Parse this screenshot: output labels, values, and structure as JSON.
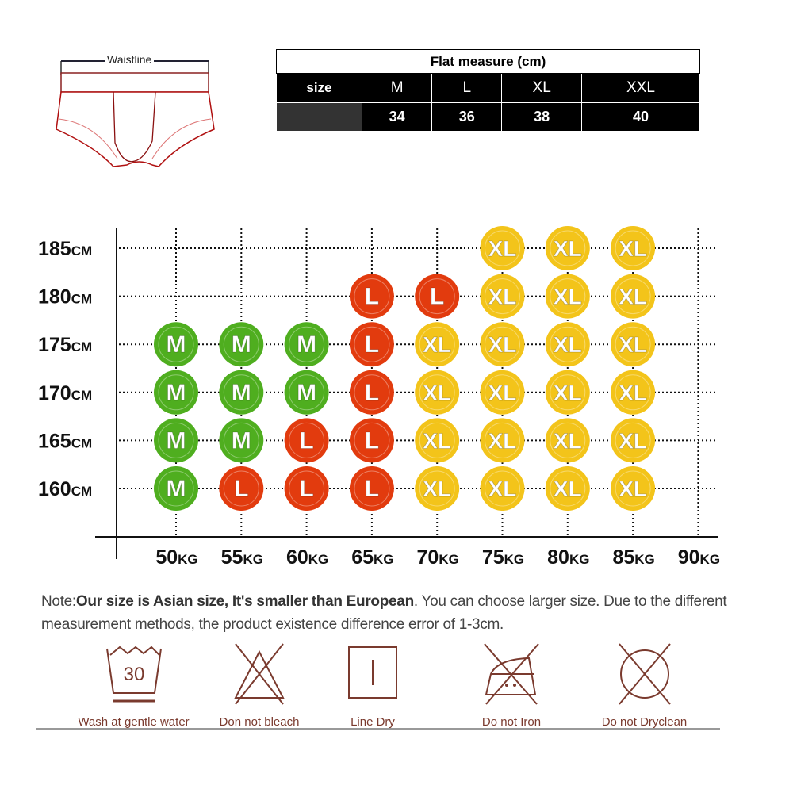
{
  "diagram": {
    "waistline_label": "Waistline"
  },
  "flat_measure": {
    "title": "Flat measure (cm)",
    "header_label": "size",
    "sizes": [
      "M",
      "L",
      "XL",
      "XXL"
    ],
    "values": [
      "34",
      "36",
      "38",
      "40"
    ]
  },
  "chart_data": {
    "type": "table",
    "title": "",
    "xlabel": "",
    "ylabel": "",
    "x_tick_labels": [
      "50KG",
      "55KG",
      "60KG",
      "65KG",
      "70KG",
      "75KG",
      "80KG",
      "85KG",
      "90KG"
    ],
    "y_tick_labels": [
      "185CM",
      "180CM",
      "175CM",
      "170CM",
      "165CM",
      "160CM"
    ],
    "x_values_kg": [
      50,
      55,
      60,
      65,
      70,
      75,
      80,
      85,
      90
    ],
    "y_values_cm": [
      185,
      180,
      175,
      170,
      165,
      160
    ],
    "grid": "dotted",
    "cells": [
      [
        "",
        "",
        "",
        "",
        "",
        "XL",
        "XL",
        "XL",
        ""
      ],
      [
        "",
        "",
        "",
        "L",
        "L",
        "XL",
        "XL",
        "XL",
        ""
      ],
      [
        "M",
        "M",
        "M",
        "L",
        "XL",
        "XL",
        "XL",
        "XL",
        ""
      ],
      [
        "M",
        "M",
        "M",
        "L",
        "XL",
        "XL",
        "XL",
        "XL",
        ""
      ],
      [
        "M",
        "M",
        "L",
        "L",
        "XL",
        "XL",
        "XL",
        "XL",
        ""
      ],
      [
        "M",
        "L",
        "L",
        "L",
        "XL",
        "XL",
        "XL",
        "XL",
        ""
      ]
    ],
    "size_colors": {
      "M": "#4fae1f",
      "L": "#e23b0e",
      "XL": "#f3c41a"
    }
  },
  "note": {
    "prefix": "Note:",
    "bold": "Our size is Asian size, It's smaller than European",
    "rest": ". You can choose larger size. Due to the different measurement methods, the product existence difference error of 1-3cm."
  },
  "care": [
    {
      "icon": "wash-30-icon",
      "label": "Wash at gentle water",
      "number": "30"
    },
    {
      "icon": "no-bleach-icon",
      "label": "Don not bleach"
    },
    {
      "icon": "line-dry-icon",
      "label": "Line Dry"
    },
    {
      "icon": "no-iron-icon",
      "label": "Do not Iron"
    },
    {
      "icon": "no-dryclean-icon",
      "label": "Do not Dryclean"
    }
  ],
  "colors": {
    "care": "#7a3a2e"
  }
}
